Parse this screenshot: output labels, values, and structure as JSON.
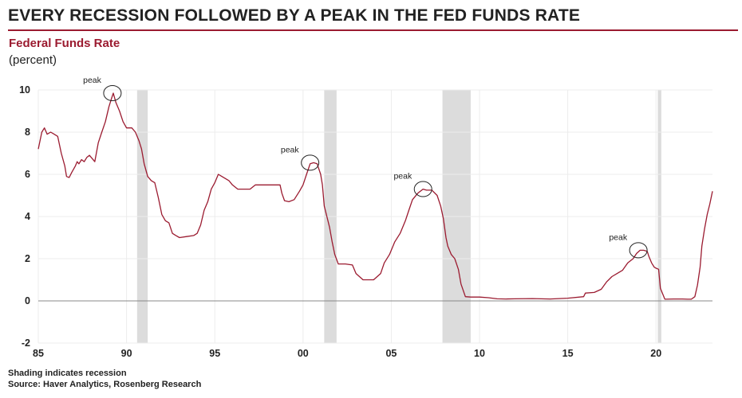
{
  "title": "EVERY RECESSION FOLLOWED BY A PEAK IN THE FED FUNDS RATE",
  "subtitle": "Federal Funds Rate",
  "unit": "(percent)",
  "footnotes": [
    "Shading indicates recession",
    "Source: Haver Analytics, Rosenberg Research"
  ],
  "colors": {
    "accent": "#9b1b30",
    "line": "#9b1b30",
    "recession": "#dcdcdc",
    "grid": "#ececec",
    "zero_line": "#888888"
  },
  "chart_data": {
    "type": "line",
    "title": "Federal Funds Rate",
    "xlabel": "",
    "ylabel": "(percent)",
    "xlim": [
      1985,
      2023.2
    ],
    "ylim": [
      -2,
      10
    ],
    "grid": true,
    "x_ticks": [
      1985,
      1990,
      1995,
      2000,
      2005,
      2010,
      2015,
      2020
    ],
    "x_tick_labels": [
      "85",
      "90",
      "95",
      "00",
      "05",
      "10",
      "15",
      "20"
    ],
    "y_ticks": [
      -2,
      0,
      2,
      4,
      6,
      8,
      10
    ],
    "y_tick_labels": [
      "-2",
      "0",
      "2",
      "4",
      "6",
      "8",
      "10"
    ],
    "recessions": [
      [
        1990.6,
        1991.2
      ],
      [
        2001.2,
        2001.9
      ],
      [
        2007.9,
        2009.5
      ],
      [
        2020.1,
        2020.3
      ]
    ],
    "annotations": [
      {
        "text": "peak",
        "x": 1989.2,
        "y": 9.85
      },
      {
        "text": "peak",
        "x": 2000.4,
        "y": 6.55
      },
      {
        "text": "peak",
        "x": 2006.8,
        "y": 5.3
      },
      {
        "text": "peak",
        "x": 2019.0,
        "y": 2.4
      }
    ],
    "series": [
      {
        "x": [
          1985.0,
          1985.2,
          1985.35,
          1985.5,
          1985.7,
          1985.9,
          1986.1,
          1986.3,
          1986.5,
          1986.6,
          1986.75,
          1986.9,
          1987.1,
          1987.2,
          1987.3,
          1987.45,
          1987.6,
          1987.75,
          1987.9,
          1988.0,
          1988.2,
          1988.4,
          1988.6,
          1988.8,
          1989.0,
          1989.15,
          1989.25,
          1989.4,
          1989.6,
          1989.8,
          1990.0,
          1990.3,
          1990.5,
          1990.7,
          1990.85,
          1991.0,
          1991.2,
          1991.4,
          1991.6,
          1991.8,
          1992.0,
          1992.2,
          1992.4,
          1992.6,
          1992.8,
          1993.0,
          1993.4,
          1993.8,
          1994.0,
          1994.2,
          1994.4,
          1994.6,
          1994.8,
          1995.0,
          1995.2,
          1995.4,
          1995.6,
          1995.8,
          1996.0,
          1996.3,
          1996.6,
          1997.0,
          1997.3,
          1997.6,
          1998.0,
          1998.4,
          1998.7,
          1998.8,
          1998.95,
          1999.2,
          1999.5,
          1999.8,
          2000.0,
          2000.2,
          2000.4,
          2000.6,
          2000.8,
          2001.0,
          2001.1,
          2001.2,
          2001.35,
          2001.5,
          2001.65,
          2001.8,
          2002.0,
          2002.4,
          2002.8,
          2003.0,
          2003.4,
          2003.7,
          2004.0,
          2004.4,
          2004.6,
          2004.9,
          2005.2,
          2005.5,
          2005.8,
          2006.0,
          2006.2,
          2006.5,
          2006.8,
          2007.0,
          2007.3,
          2007.6,
          2007.8,
          2007.95,
          2008.1,
          2008.2,
          2008.4,
          2008.6,
          2008.8,
          2008.95,
          2009.2,
          2009.5,
          2010.0,
          2010.5,
          2011.0,
          2011.5,
          2012.0,
          2013.0,
          2014.0,
          2015.0,
          2015.9,
          2016.0,
          2016.5,
          2016.9,
          2017.2,
          2017.5,
          2017.8,
          2018.1,
          2018.4,
          2018.7,
          2018.9,
          2019.1,
          2019.3,
          2019.5,
          2019.6,
          2019.75,
          2019.9,
          2020.0,
          2020.15,
          2020.25,
          2020.5,
          2021.0,
          2021.5,
          2021.8,
          2022.0,
          2022.2,
          2022.35,
          2022.5,
          2022.6,
          2022.75,
          2022.9,
          2023.05,
          2023.2
        ],
        "y": [
          7.2,
          8.0,
          8.2,
          7.9,
          8.0,
          7.9,
          7.8,
          7.0,
          6.4,
          5.9,
          5.85,
          6.1,
          6.4,
          6.6,
          6.5,
          6.7,
          6.6,
          6.8,
          6.9,
          6.8,
          6.6,
          7.5,
          8.0,
          8.5,
          9.2,
          9.6,
          9.85,
          9.4,
          9.0,
          8.5,
          8.2,
          8.2,
          8.0,
          7.6,
          7.2,
          6.5,
          5.9,
          5.7,
          5.6,
          4.9,
          4.1,
          3.8,
          3.7,
          3.2,
          3.1,
          3.0,
          3.05,
          3.1,
          3.2,
          3.6,
          4.3,
          4.7,
          5.3,
          5.6,
          6.0,
          5.9,
          5.8,
          5.7,
          5.5,
          5.3,
          5.3,
          5.3,
          5.5,
          5.5,
          5.5,
          5.5,
          5.5,
          5.1,
          4.75,
          4.7,
          4.8,
          5.2,
          5.5,
          6.0,
          6.5,
          6.55,
          6.5,
          6.0,
          5.5,
          4.5,
          4.0,
          3.5,
          2.8,
          2.2,
          1.75,
          1.75,
          1.7,
          1.3,
          1.0,
          1.0,
          1.0,
          1.3,
          1.8,
          2.2,
          2.8,
          3.2,
          3.8,
          4.3,
          4.8,
          5.1,
          5.3,
          5.25,
          5.25,
          5.0,
          4.5,
          3.9,
          3.0,
          2.6,
          2.2,
          2.0,
          1.5,
          0.8,
          0.2,
          0.18,
          0.18,
          0.15,
          0.1,
          0.09,
          0.1,
          0.11,
          0.09,
          0.13,
          0.2,
          0.37,
          0.4,
          0.55,
          0.9,
          1.15,
          1.3,
          1.45,
          1.8,
          2.0,
          2.25,
          2.4,
          2.4,
          2.35,
          2.1,
          1.8,
          1.6,
          1.55,
          1.5,
          0.6,
          0.08,
          0.09,
          0.09,
          0.08,
          0.08,
          0.2,
          0.75,
          1.6,
          2.6,
          3.4,
          4.1,
          4.6,
          5.2
        ]
      }
    ]
  }
}
